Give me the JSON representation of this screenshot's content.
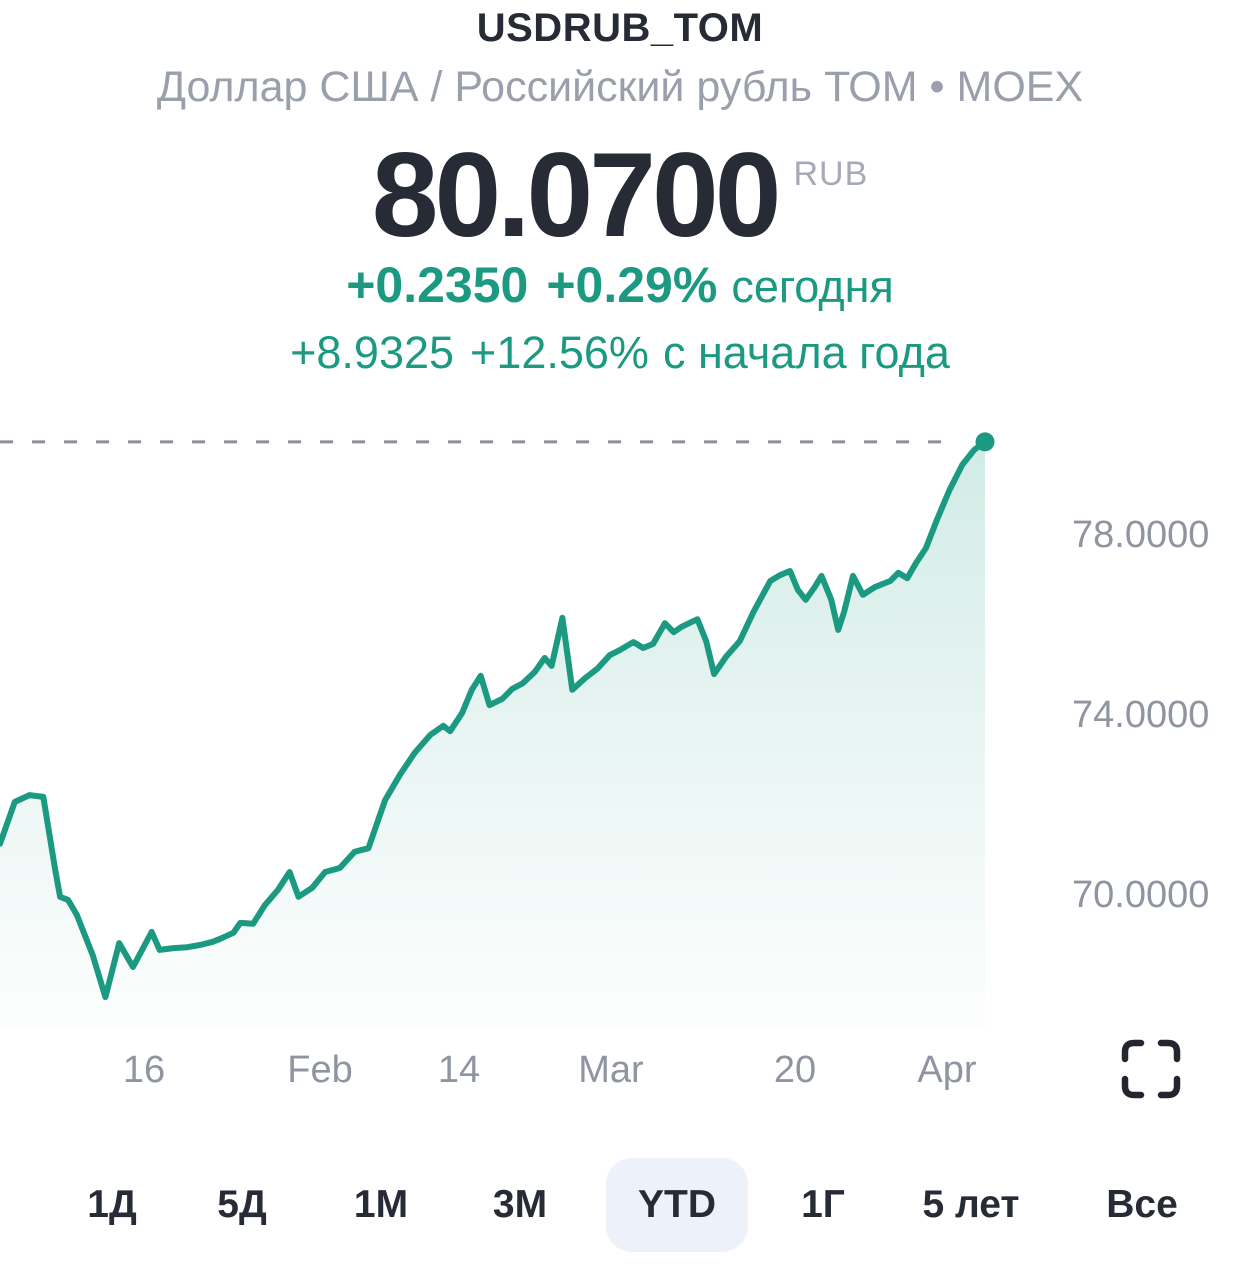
{
  "header": {
    "symbol": "USDRUB_TOM",
    "subtitle": "Доллар США / Российский рубль ТОМ • MOEX"
  },
  "quote": {
    "price": "80.0700",
    "currency": "RUB",
    "today": {
      "abs": "+0.2350",
      "pct": "+0.29%",
      "label": "сегодня"
    },
    "ytd": {
      "abs": "+8.9325",
      "pct": "+12.56%",
      "label": "с начала года"
    }
  },
  "colors": {
    "accent": "#1b9a81",
    "text_dark": "#262b36",
    "text_gray": "#999fab",
    "axis_gray": "#8f95a0",
    "dash_gray": "#8a909b",
    "pill_bg": "#edf1f9",
    "fill_top_opacity": "0.20"
  },
  "ranges": [
    {
      "label": "1Д",
      "active": false
    },
    {
      "label": "5Д",
      "active": false
    },
    {
      "label": "1М",
      "active": false
    },
    {
      "label": "3М",
      "active": false
    },
    {
      "label": "YTD",
      "active": true
    },
    {
      "label": "1Г",
      "active": false
    },
    {
      "label": "5 лет",
      "active": false
    },
    {
      "label": "Все",
      "active": false
    }
  ],
  "chart_data": {
    "type": "area",
    "title": "USDRUB_TOM — YTD",
    "ylabel": "RUB",
    "ylim": [
      67.3,
      80.5
    ],
    "grid": false,
    "legend_position": "none",
    "current_price": 80.07,
    "current_price_line": "dashed",
    "y_ticks": [
      {
        "price": 78,
        "label": "78.0000"
      },
      {
        "price": 74,
        "label": "74.0000"
      },
      {
        "price": 70,
        "label": "70.0000"
      }
    ],
    "x_ticks": [
      {
        "f": 0.146,
        "label": "16"
      },
      {
        "f": 0.325,
        "label": "Feb"
      },
      {
        "f": 0.466,
        "label": "14"
      },
      {
        "f": 0.62,
        "label": "Mar"
      },
      {
        "f": 0.807,
        "label": "20"
      },
      {
        "f": 0.961,
        "label": "Apr"
      }
    ],
    "points": [
      [
        0.0,
        71.14
      ],
      [
        0.015,
        72.07
      ],
      [
        0.03,
        72.22
      ],
      [
        0.044,
        72.18
      ],
      [
        0.056,
        70.56
      ],
      [
        0.061,
        69.96
      ],
      [
        0.069,
        69.89
      ],
      [
        0.078,
        69.56
      ],
      [
        0.094,
        68.67
      ],
      [
        0.107,
        67.73
      ],
      [
        0.121,
        68.93
      ],
      [
        0.135,
        68.4
      ],
      [
        0.154,
        69.18
      ],
      [
        0.162,
        68.78
      ],
      [
        0.176,
        68.82
      ],
      [
        0.19,
        68.84
      ],
      [
        0.203,
        68.89
      ],
      [
        0.216,
        68.96
      ],
      [
        0.225,
        69.04
      ],
      [
        0.237,
        69.16
      ],
      [
        0.244,
        69.38
      ],
      [
        0.257,
        69.36
      ],
      [
        0.269,
        69.78
      ],
      [
        0.282,
        70.11
      ],
      [
        0.294,
        70.51
      ],
      [
        0.303,
        69.96
      ],
      [
        0.317,
        70.16
      ],
      [
        0.33,
        70.51
      ],
      [
        0.345,
        70.6
      ],
      [
        0.36,
        70.96
      ],
      [
        0.374,
        71.04
      ],
      [
        0.391,
        72.11
      ],
      [
        0.406,
        72.67
      ],
      [
        0.421,
        73.16
      ],
      [
        0.437,
        73.56
      ],
      [
        0.45,
        73.76
      ],
      [
        0.457,
        73.64
      ],
      [
        0.469,
        74.04
      ],
      [
        0.479,
        74.56
      ],
      [
        0.488,
        74.87
      ],
      [
        0.497,
        74.22
      ],
      [
        0.51,
        74.36
      ],
      [
        0.52,
        74.58
      ],
      [
        0.531,
        74.71
      ],
      [
        0.543,
        74.96
      ],
      [
        0.553,
        75.27
      ],
      [
        0.56,
        75.09
      ],
      [
        0.571,
        76.16
      ],
      [
        0.581,
        74.56
      ],
      [
        0.594,
        74.82
      ],
      [
        0.607,
        75.04
      ],
      [
        0.619,
        75.33
      ],
      [
        0.629,
        75.44
      ],
      [
        0.643,
        75.62
      ],
      [
        0.653,
        75.49
      ],
      [
        0.663,
        75.58
      ],
      [
        0.675,
        76.04
      ],
      [
        0.684,
        75.84
      ],
      [
        0.692,
        75.96
      ],
      [
        0.708,
        76.13
      ],
      [
        0.717,
        75.64
      ],
      [
        0.725,
        74.91
      ],
      [
        0.737,
        75.29
      ],
      [
        0.751,
        75.64
      ],
      [
        0.765,
        76.29
      ],
      [
        0.782,
        76.98
      ],
      [
        0.792,
        77.11
      ],
      [
        0.802,
        77.2
      ],
      [
        0.81,
        76.78
      ],
      [
        0.818,
        76.56
      ],
      [
        0.827,
        76.84
      ],
      [
        0.834,
        77.09
      ],
      [
        0.844,
        76.56
      ],
      [
        0.851,
        75.89
      ],
      [
        0.857,
        76.29
      ],
      [
        0.866,
        77.09
      ],
      [
        0.876,
        76.67
      ],
      [
        0.888,
        76.84
      ],
      [
        0.904,
        76.98
      ],
      [
        0.912,
        77.16
      ],
      [
        0.921,
        77.04
      ],
      [
        0.93,
        77.38
      ],
      [
        0.94,
        77.71
      ],
      [
        0.952,
        78.38
      ],
      [
        0.964,
        79.0
      ],
      [
        0.977,
        79.56
      ],
      [
        0.989,
        79.89
      ],
      [
        1.0,
        80.07
      ]
    ]
  }
}
